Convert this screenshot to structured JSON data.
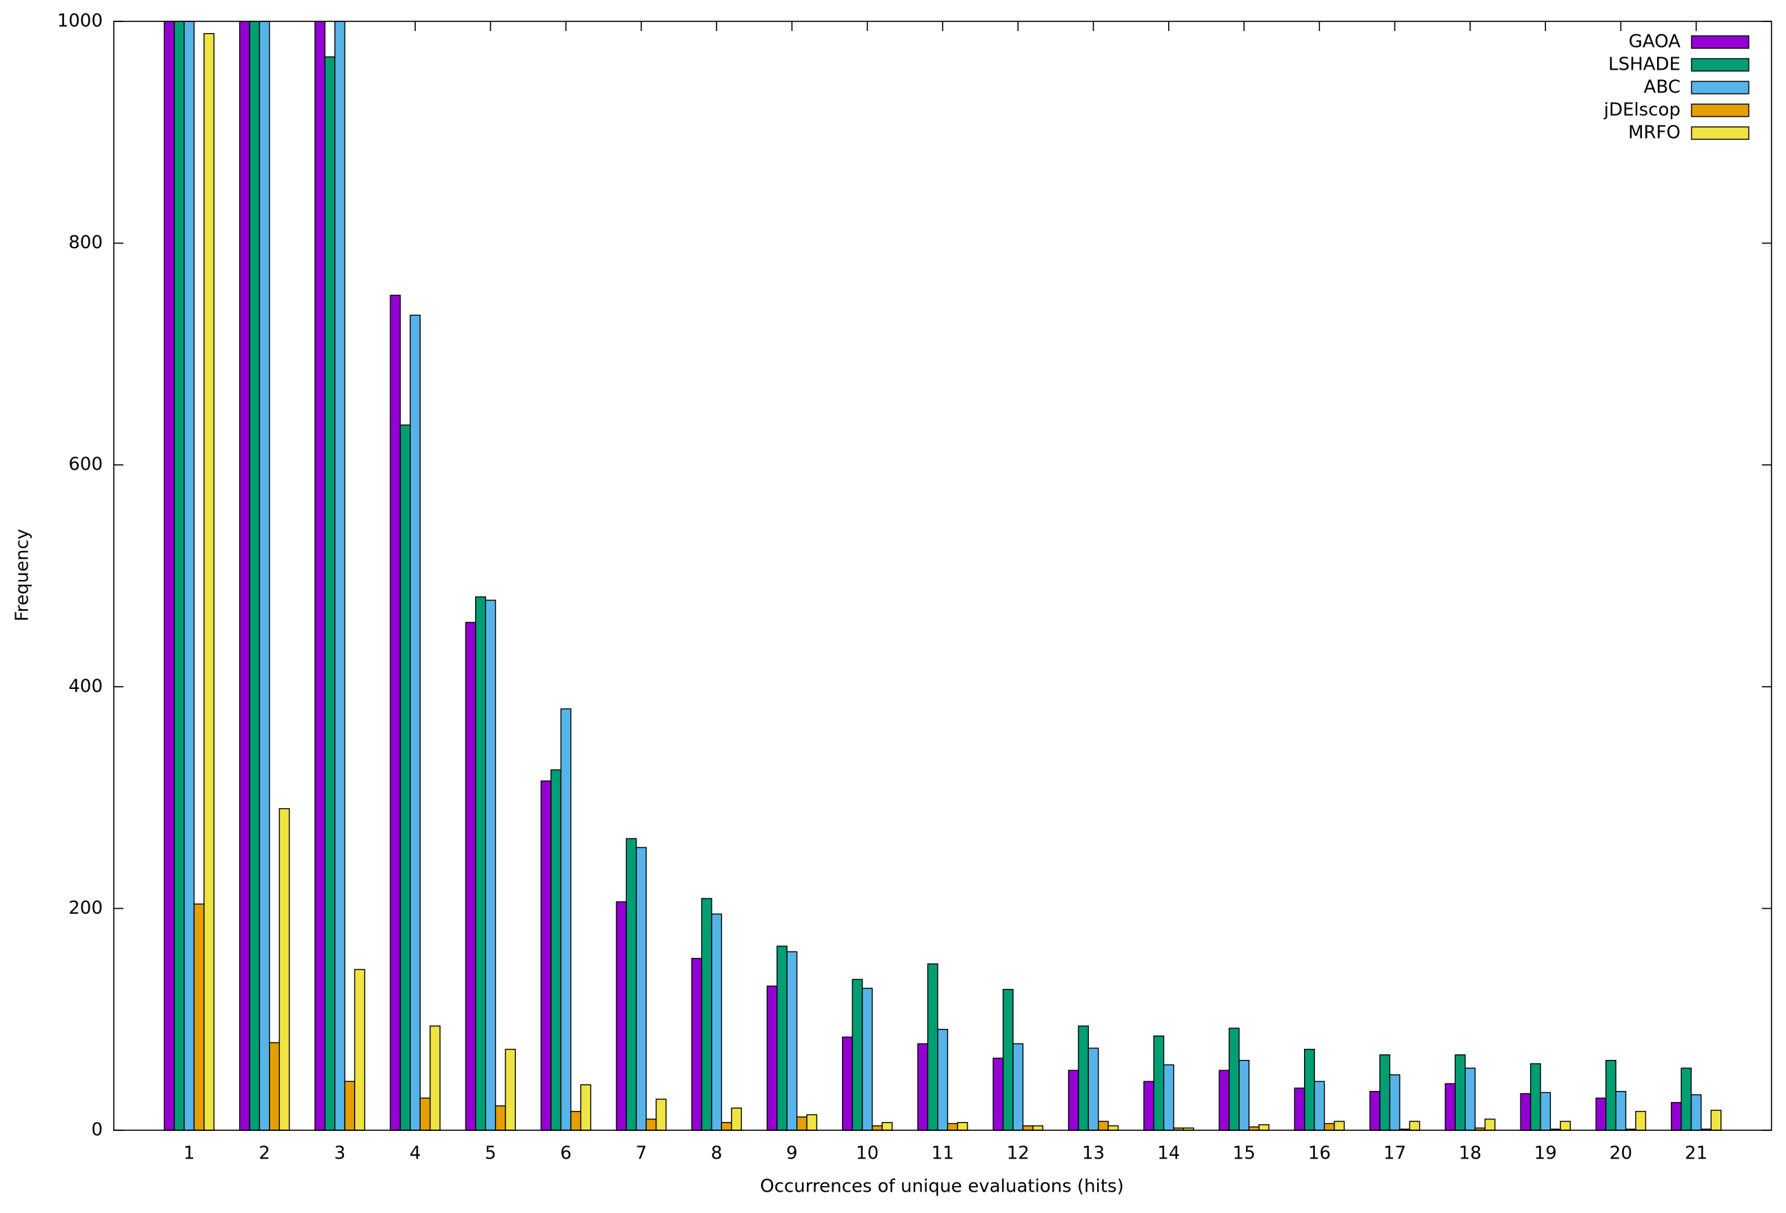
{
  "chart_data": {
    "type": "bar",
    "x_label": "Occurrences of unique evaluations (hits)",
    "y_label": "Frequency",
    "categories": [
      "1",
      "2",
      "3",
      "4",
      "5",
      "6",
      "7",
      "8",
      "9",
      "10",
      "11",
      "12",
      "13",
      "14",
      "15",
      "16",
      "17",
      "18",
      "19",
      "20",
      "21"
    ],
    "series": [
      {
        "name": "GAOA",
        "color": "#9400d3",
        "values": [
          1000,
          1000,
          1000,
          753,
          458,
          315,
          206,
          155,
          130,
          84,
          78,
          65,
          54,
          44,
          54,
          38,
          35,
          42,
          33,
          29,
          25
        ]
      },
      {
        "name": "LSHADE",
        "color": "#009e73",
        "values": [
          1000,
          1000,
          968,
          636,
          481,
          325,
          263,
          209,
          166,
          136,
          150,
          127,
          94,
          85,
          92,
          73,
          68,
          68,
          60,
          63,
          56
        ]
      },
      {
        "name": "ABC",
        "color": "#56b4e9",
        "values": [
          1000,
          1000,
          1000,
          735,
          478,
          380,
          255,
          195,
          161,
          128,
          91,
          78,
          74,
          59,
          63,
          44,
          50,
          56,
          34,
          35,
          32
        ]
      },
      {
        "name": "jDElscop",
        "color": "#e69f00",
        "values": [
          204,
          79,
          44,
          29,
          22,
          17,
          10,
          7,
          12,
          4,
          6,
          4,
          8,
          2,
          3,
          6,
          1,
          2,
          1,
          1,
          1
        ]
      },
      {
        "name": "MRFO",
        "color": "#f0e442",
        "values": [
          989,
          290,
          145,
          94,
          73,
          41,
          28,
          20,
          14,
          7,
          7,
          4,
          4,
          2,
          5,
          8,
          8,
          10,
          8,
          17,
          18
        ]
      }
    ],
    "ylim": [
      0,
      1000
    ],
    "yticks": [
      0,
      200,
      400,
      600,
      800,
      1000
    ],
    "legend": "top-right"
  }
}
